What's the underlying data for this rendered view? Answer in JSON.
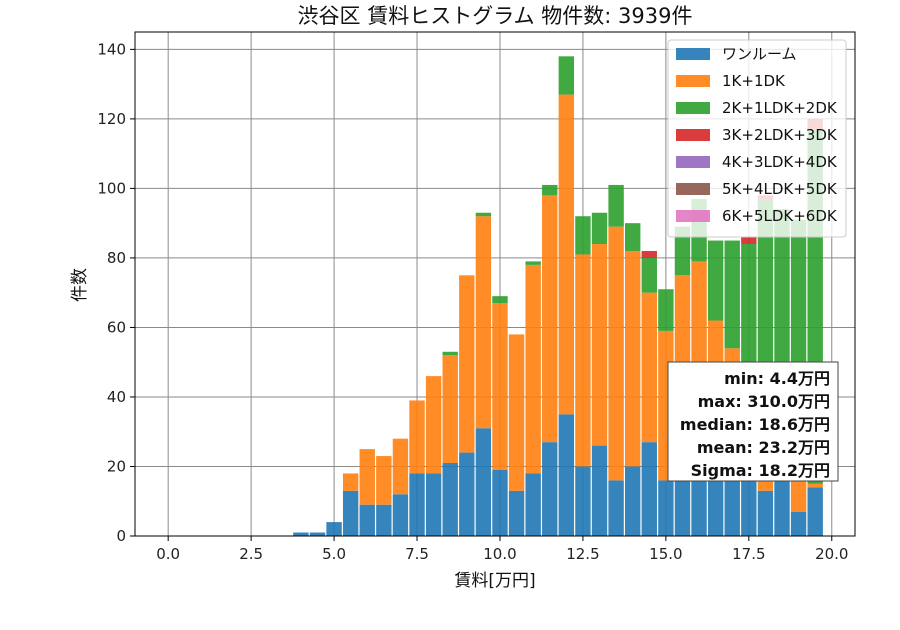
{
  "chart_data": {
    "type": "bar",
    "stacked": true,
    "title": "渋谷区 賃料ヒストグラム 物件数: 3939件",
    "xlabel": "賃料[万円]",
    "ylabel": "件数",
    "xlim": [
      -1.0,
      20.7
    ],
    "ylim": [
      0,
      145
    ],
    "xticks": [
      "0.0",
      "2.5",
      "5.0",
      "7.5",
      "10.0",
      "12.5",
      "15.0",
      "17.5",
      "20.0"
    ],
    "xtick_values": [
      0,
      2.5,
      5,
      7.5,
      10,
      12.5,
      15,
      17.5,
      20
    ],
    "yticks": [
      "0",
      "20",
      "40",
      "60",
      "80",
      "100",
      "120",
      "140"
    ],
    "ytick_values": [
      0,
      20,
      40,
      60,
      80,
      100,
      120,
      140
    ],
    "grid": true,
    "legend_position": "top-right",
    "bin_width": 0.5,
    "x": [
      4.0,
      4.5,
      5.0,
      5.5,
      6.0,
      6.5,
      7.0,
      7.5,
      8.0,
      8.5,
      9.0,
      9.5,
      10.0,
      10.5,
      11.0,
      11.5,
      12.0,
      12.5,
      13.0,
      13.5,
      14.0,
      14.5,
      15.0,
      15.5,
      16.0,
      16.5,
      17.0,
      17.5,
      18.0,
      18.5,
      19.0,
      19.5
    ],
    "series": [
      {
        "name": "ワンルーム",
        "color": "#1f77b4",
        "values": [
          1,
          1,
          4,
          13,
          9,
          9,
          12,
          18,
          18,
          21,
          24,
          31,
          19,
          13,
          18,
          27,
          35,
          20,
          26,
          16,
          20,
          27,
          16,
          16,
          20,
          20,
          22,
          17,
          13,
          17,
          7,
          14
        ]
      },
      {
        "name": "1K+1DK",
        "color": "#ff7f0e",
        "values": [
          0,
          0,
          0,
          5,
          16,
          14,
          16,
          21,
          28,
          31,
          51,
          61,
          48,
          45,
          60,
          71,
          92,
          61,
          58,
          73,
          62,
          43,
          43,
          59,
          59,
          42,
          32,
          7,
          5,
          7,
          16,
          1
        ]
      },
      {
        "name": "2K+1LDK+2DK",
        "color": "#2ca02c",
        "values": [
          0,
          0,
          0,
          0,
          0,
          0,
          0,
          0,
          0,
          1,
          0,
          1,
          2,
          0,
          1,
          3,
          11,
          11,
          9,
          12,
          8,
          10,
          12,
          14,
          18,
          23,
          31,
          60,
          79,
          70,
          68,
          102
        ]
      },
      {
        "name": "3K+2LDK+3DK",
        "color": "#d62728",
        "values": [
          0,
          0,
          0,
          0,
          0,
          0,
          0,
          0,
          0,
          0,
          0,
          0,
          0,
          0,
          0,
          0,
          0,
          0,
          0,
          0,
          0,
          2,
          0,
          0,
          0,
          0,
          0,
          2,
          1,
          0,
          0,
          3
        ]
      },
      {
        "name": "4K+3LDK+4DK",
        "color": "#9467bd",
        "values": [
          0,
          0,
          0,
          0,
          0,
          0,
          0,
          0,
          0,
          0,
          0,
          0,
          0,
          0,
          0,
          0,
          0,
          0,
          0,
          0,
          0,
          0,
          0,
          0,
          0,
          0,
          0,
          0,
          0,
          0,
          0,
          0
        ]
      },
      {
        "name": "5K+4LDK+5DK",
        "color": "#8c564b",
        "values": [
          0,
          0,
          0,
          0,
          0,
          0,
          0,
          0,
          0,
          0,
          0,
          0,
          0,
          0,
          0,
          0,
          0,
          0,
          0,
          0,
          0,
          0,
          0,
          0,
          0,
          0,
          0,
          0,
          0,
          0,
          0,
          0
        ]
      },
      {
        "name": "6K+5LDK+6DK",
        "color": "#e377c2",
        "values": [
          0,
          0,
          0,
          0,
          0,
          0,
          0,
          0,
          0,
          0,
          0,
          0,
          0,
          0,
          0,
          0,
          0,
          0,
          0,
          0,
          0,
          0,
          0,
          0,
          0,
          0,
          0,
          0,
          0,
          0,
          0,
          0
        ]
      }
    ],
    "stats_box": [
      "min: 4.4万円",
      "max: 310.0万円",
      "median: 18.6万円",
      "mean: 23.2万円",
      "Sigma: 18.2万円"
    ]
  }
}
